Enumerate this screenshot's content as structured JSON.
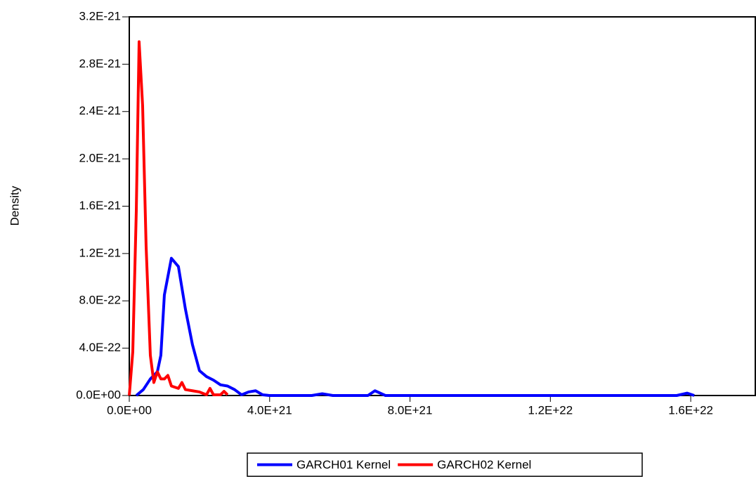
{
  "chart_data": {
    "type": "line",
    "y_label": "Density",
    "xlim": [
      0,
      1.784e+22
    ],
    "ylim": [
      0,
      3.2e-21
    ],
    "xticks": [
      {
        "value": 0,
        "label": "0.0E+00"
      },
      {
        "value": 4e+21,
        "label": "4.0E+21"
      },
      {
        "value": 8e+21,
        "label": "8.0E+21"
      },
      {
        "value": 1.2e+22,
        "label": "1.2E+22"
      },
      {
        "value": 1.6e+22,
        "label": "1.6E+22"
      }
    ],
    "yticks": [
      {
        "value": 0,
        "label": "0.0E+00"
      },
      {
        "value": 4e-22,
        "label": "4.0E-22"
      },
      {
        "value": 8e-22,
        "label": "8.0E-22"
      },
      {
        "value": 1.2e-21,
        "label": "1.2E-21"
      },
      {
        "value": 1.6e-21,
        "label": "1.6E-21"
      },
      {
        "value": 2e-21,
        "label": "2.0E-21"
      },
      {
        "value": 2.4e-21,
        "label": "2.4E-21"
      },
      {
        "value": 2.8e-21,
        "label": "2.8E-21"
      },
      {
        "value": 3.2e-21,
        "label": "3.2E-21"
      }
    ],
    "legend": "bottom",
    "series": [
      {
        "name": "GARCH01 Kernel",
        "color": "#0000ff",
        "x": [
          2e+20,
          4e+20,
          6e+20,
          8e+20,
          9e+20,
          1e+21,
          1.2e+21,
          1.4e+21,
          1.6e+21,
          1.8e+21,
          2e+21,
          2.2e+21,
          2.4e+21,
          2.6e+21,
          2.8e+21,
          3e+21,
          3.2e+21,
          3.4e+21,
          3.6e+21,
          3.8e+21,
          4e+21,
          5.2e+21,
          5.5e+21,
          5.8e+21,
          6.8e+21,
          7e+21,
          7.3e+21,
          1.56e+22,
          1.59e+22,
          1.61e+22
        ],
        "values": [
          0,
          5e-23,
          1.4e-22,
          2e-22,
          3.4e-22,
          8.5e-22,
          1.16e-21,
          1.09e-21,
          7.3e-22,
          4.3e-22,
          2.1e-22,
          1.6e-22,
          1.3e-22,
          9e-23,
          8e-23,
          5e-23,
          6e-24,
          3e-23,
          4e-23,
          6e-24,
          0,
          0,
          1.5e-23,
          0,
          0,
          4e-23,
          0,
          0,
          2e-23,
          0
        ]
      },
      {
        "name": "GARCH02 Kernel",
        "color": "#ff0000",
        "x": [
          0,
          1e+20,
          2e+20,
          2.8e+20,
          3.8e+20,
          4.8e+20,
          6e+20,
          7e+20,
          8e+20,
          9e+20,
          1e+21,
          1.1e+21,
          1.2e+21,
          1.4e+21,
          1.5e+21,
          1.6e+21,
          1.8e+21,
          2e+21,
          2.2e+21,
          2.3e+21,
          2.4e+21,
          2.6e+21,
          2.7e+21,
          2.8e+21
        ],
        "values": [
          0,
          3.7e-22,
          1.56e-21,
          2.99e-21,
          2.45e-21,
          1.26e-21,
          3.4e-22,
          1.1e-22,
          2e-22,
          1.4e-22,
          1.4e-22,
          1.7e-22,
          8e-23,
          6e-23,
          1.1e-22,
          5e-23,
          4e-23,
          3e-23,
          6e-24,
          6e-23,
          6e-24,
          6e-24,
          3.5e-23,
          6e-24
        ]
      }
    ]
  }
}
